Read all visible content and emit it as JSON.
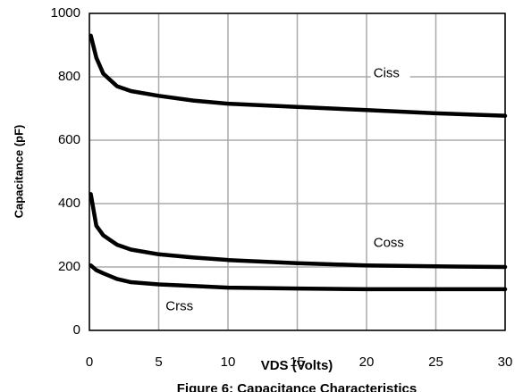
{
  "chart_data": {
    "type": "line",
    "xlabel": "VDS (Volts)",
    "ylabel": "Capacitance (pF)",
    "caption": "Figure 6: Capacitance Characteristics",
    "x": [
      0.1,
      0.5,
      1,
      2,
      3,
      5,
      7.5,
      10,
      15,
      20,
      25,
      30
    ],
    "series": [
      {
        "name": "Ciss",
        "color": "#000000",
        "values": [
          930,
          860,
          810,
          770,
          755,
          740,
          725,
          715,
          705,
          695,
          685,
          677
        ]
      },
      {
        "name": "Coss",
        "color": "#000000",
        "values": [
          430,
          330,
          300,
          270,
          255,
          240,
          230,
          222,
          212,
          205,
          202,
          200
        ]
      },
      {
        "name": "Crss",
        "color": "#000000",
        "values": [
          205,
          190,
          180,
          162,
          152,
          145,
          140,
          135,
          132,
          130,
          130,
          130
        ]
      }
    ],
    "annotations": [
      {
        "text": "Ciss",
        "x": 20.5,
        "y": 810
      },
      {
        "text": "Coss",
        "x": 20.5,
        "y": 275
      },
      {
        "text": "Crss",
        "x": 5.5,
        "y": 75
      }
    ],
    "xlim": [
      0,
      30
    ],
    "xticks": [
      0,
      5,
      10,
      15,
      20,
      25,
      30
    ],
    "ylim": [
      0,
      1000
    ],
    "yticks": [
      0,
      200,
      400,
      600,
      800,
      1000
    ],
    "grid": true
  }
}
